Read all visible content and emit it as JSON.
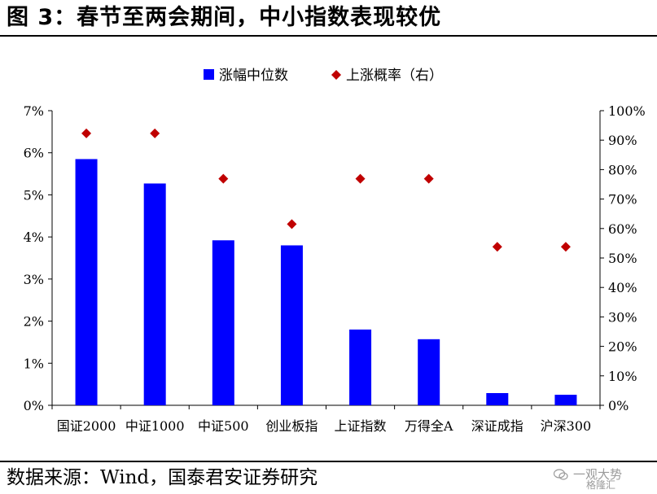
{
  "page": {
    "title": "图 3：春节至两会期间，中小指数表现较优",
    "source": "数据来源：Wind，国泰君安证券研究",
    "watermark_line1": "一观大势",
    "watermark_line2": "格隆汇"
  },
  "colors": {
    "bar": "#0000FF",
    "marker": "#C00000",
    "axis": "#000000"
  },
  "chart_data": {
    "type": "bar",
    "title": "",
    "xlabel": "",
    "ylabel": "",
    "categories": [
      "国证2000",
      "中证1000",
      "中证500",
      "创业板指",
      "上证指数",
      "万得全A",
      "深证成指",
      "沪深300"
    ],
    "series": [
      {
        "name": "涨幅中位数",
        "type": "bar",
        "axis": "left",
        "values": [
          5.85,
          5.27,
          3.92,
          3.8,
          1.8,
          1.57,
          0.29,
          0.25
        ]
      },
      {
        "name": "上涨概率（右）",
        "type": "scatter",
        "marker": "diamond",
        "axis": "right",
        "values": [
          92.3,
          92.3,
          76.9,
          61.5,
          76.9,
          76.9,
          53.8,
          53.8
        ]
      }
    ],
    "y_left": {
      "min": 0,
      "max": 7,
      "step": 1,
      "ticks": [
        "0%",
        "1%",
        "2%",
        "3%",
        "4%",
        "5%",
        "6%",
        "7%"
      ]
    },
    "y_right": {
      "min": 0,
      "max": 100,
      "step": 10,
      "ticks": [
        "0%",
        "10%",
        "20%",
        "30%",
        "40%",
        "50%",
        "60%",
        "70%",
        "80%",
        "90%",
        "100%"
      ]
    },
    "grid": false,
    "legend_position": "top-center"
  }
}
